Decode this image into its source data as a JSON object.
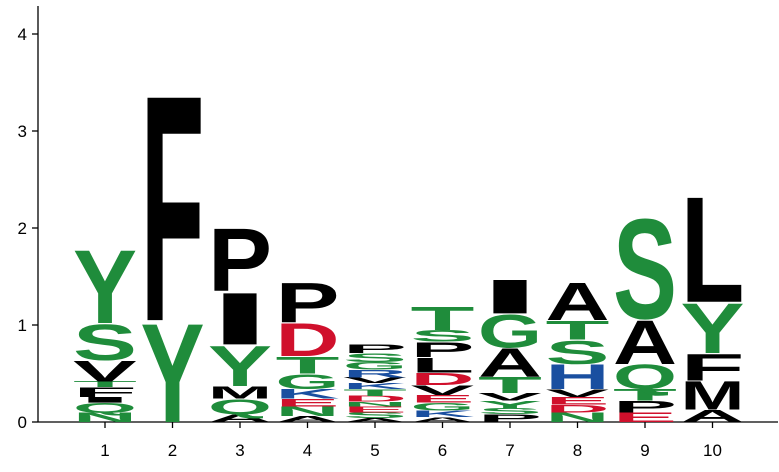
{
  "colors": {
    "hydrophilic": "#1f8c3b",
    "hydrophobic": "#000000",
    "acidic": "#d0102c",
    "basic": "#1a4fa0"
  },
  "chart_data": {
    "type": "sequence-logo",
    "title": "",
    "xlabel": "",
    "ylabel": "",
    "ylim": [
      0,
      4.3
    ],
    "grid": false,
    "yticks": [
      "0",
      "1",
      "2",
      "3",
      "4"
    ],
    "xticks": [
      "1",
      "2",
      "3",
      "4",
      "5",
      "6",
      "7",
      "8",
      "9",
      "10"
    ],
    "positions": [
      {
        "pos": "1",
        "letters": [
          {
            "l": "N",
            "h": 0.1,
            "c": "hydrophilic"
          },
          {
            "l": "Q",
            "h": 0.1,
            "c": "hydrophilic"
          },
          {
            "l": "I",
            "h": 0.06,
            "c": "hydrophobic"
          },
          {
            "l": "F",
            "h": 0.1,
            "c": "hydrophobic"
          },
          {
            "l": "T",
            "h": 0.06,
            "c": "hydrophilic"
          },
          {
            "l": "V",
            "h": 0.22,
            "c": "hydrophobic"
          },
          {
            "l": "S",
            "h": 0.38,
            "c": "hydrophilic"
          },
          {
            "l": "Y",
            "h": 0.78,
            "c": "hydrophilic"
          }
        ]
      },
      {
        "pos": "2",
        "letters": [
          {
            "l": "Y",
            "h": 1.05,
            "c": "hydrophilic"
          },
          {
            "l": "F",
            "h": 2.4,
            "c": "hydrophobic"
          }
        ]
      },
      {
        "pos": "3",
        "letters": [
          {
            "l": "A",
            "h": 0.08,
            "c": "hydrophobic"
          },
          {
            "l": "Q",
            "h": 0.16,
            "c": "hydrophilic"
          },
          {
            "l": "M",
            "h": 0.13,
            "c": "hydrophobic"
          },
          {
            "l": "Y",
            "h": 0.43,
            "c": "hydrophilic"
          },
          {
            "l": "I",
            "h": 0.55,
            "c": "hydrophobic"
          },
          {
            "l": "P",
            "h": 0.67,
            "c": "hydrophobic"
          }
        ]
      },
      {
        "pos": "4",
        "letters": [
          {
            "l": "A",
            "h": 0.06,
            "c": "hydrophobic"
          },
          {
            "l": "N",
            "h": 0.1,
            "c": "hydrophilic"
          },
          {
            "l": "E",
            "h": 0.08,
            "c": "acidic"
          },
          {
            "l": "K",
            "h": 0.1,
            "c": "basic"
          },
          {
            "l": "G",
            "h": 0.16,
            "c": "hydrophilic"
          },
          {
            "l": "T",
            "h": 0.18,
            "c": "hydrophilic"
          },
          {
            "l": "D",
            "h": 0.35,
            "c": "acidic"
          },
          {
            "l": "P",
            "h": 0.42,
            "c": "hydrophobic"
          }
        ]
      },
      {
        "pos": "5",
        "letters": [
          {
            "l": "A",
            "h": 0.04,
            "c": "hydrophobic"
          },
          {
            "l": "S",
            "h": 0.06,
            "c": "hydrophilic"
          },
          {
            "l": "E",
            "h": 0.06,
            "c": "acidic"
          },
          {
            "l": "N",
            "h": 0.05,
            "c": "hydrophilic"
          },
          {
            "l": "D",
            "h": 0.06,
            "c": "acidic"
          },
          {
            "l": "T",
            "h": 0.07,
            "c": "hydrophilic"
          },
          {
            "l": "K",
            "h": 0.06,
            "c": "basic"
          },
          {
            "l": "V",
            "h": 0.06,
            "c": "hydrophobic"
          },
          {
            "l": "R",
            "h": 0.08,
            "c": "basic"
          },
          {
            "l": "G",
            "h": 0.08,
            "c": "hydrophilic"
          },
          {
            "l": "S",
            "h": 0.09,
            "c": "hydrophilic"
          },
          {
            "l": "P",
            "h": 0.09,
            "c": "hydrophobic"
          }
        ]
      },
      {
        "pos": "6",
        "letters": [
          {
            "l": "A",
            "h": 0.05,
            "c": "hydrophobic"
          },
          {
            "l": "K",
            "h": 0.07,
            "c": "basic"
          },
          {
            "l": "G",
            "h": 0.08,
            "c": "hydrophilic"
          },
          {
            "l": "E",
            "h": 0.08,
            "c": "acidic"
          },
          {
            "l": "V",
            "h": 0.1,
            "c": "hydrophobic"
          },
          {
            "l": "D",
            "h": 0.13,
            "c": "acidic"
          },
          {
            "l": "L",
            "h": 0.16,
            "c": "hydrophobic"
          },
          {
            "l": "P",
            "h": 0.16,
            "c": "hydrophobic"
          },
          {
            "l": "S",
            "h": 0.12,
            "c": "hydrophilic"
          },
          {
            "l": "T",
            "h": 0.25,
            "c": "hydrophilic"
          }
        ]
      },
      {
        "pos": "7",
        "letters": [
          {
            "l": "P",
            "h": 0.08,
            "c": "hydrophobic"
          },
          {
            "l": "S",
            "h": 0.06,
            "c": "hydrophilic"
          },
          {
            "l": "Y",
            "h": 0.08,
            "c": "hydrophilic"
          },
          {
            "l": "V",
            "h": 0.08,
            "c": "hydrophobic"
          },
          {
            "l": "T",
            "h": 0.17,
            "c": "hydrophilic"
          },
          {
            "l": "A",
            "h": 0.3,
            "c": "hydrophobic"
          },
          {
            "l": "G",
            "h": 0.35,
            "c": "hydrophilic"
          },
          {
            "l": "I",
            "h": 0.36,
            "c": "hydrophobic"
          }
        ]
      },
      {
        "pos": "8",
        "letters": [
          {
            "l": "N",
            "h": 0.1,
            "c": "hydrophilic"
          },
          {
            "l": "D",
            "h": 0.08,
            "c": "acidic"
          },
          {
            "l": "E",
            "h": 0.08,
            "c": "acidic"
          },
          {
            "l": "V",
            "h": 0.08,
            "c": "hydrophobic"
          },
          {
            "l": "H",
            "h": 0.26,
            "c": "basic"
          },
          {
            "l": "S",
            "h": 0.25,
            "c": "hydrophilic"
          },
          {
            "l": "T",
            "h": 0.2,
            "c": "hydrophilic"
          },
          {
            "l": "A",
            "h": 0.4,
            "c": "hydrophobic"
          }
        ]
      },
      {
        "pos": "9",
        "letters": [
          {
            "l": "E",
            "h": 0.1,
            "c": "acidic"
          },
          {
            "l": "P",
            "h": 0.12,
            "c": "hydrophobic"
          },
          {
            "l": "T",
            "h": 0.12,
            "c": "hydrophilic"
          },
          {
            "l": "Q",
            "h": 0.26,
            "c": "hydrophilic"
          },
          {
            "l": "A",
            "h": 0.47,
            "c": "hydrophobic"
          },
          {
            "l": "S",
            "h": 1.06,
            "c": "hydrophilic"
          }
        ]
      },
      {
        "pos": "10",
        "letters": [
          {
            "l": "A",
            "h": 0.13,
            "c": "hydrophobic"
          },
          {
            "l": "M",
            "h": 0.3,
            "c": "hydrophobic"
          },
          {
            "l": "F",
            "h": 0.28,
            "c": "hydrophobic"
          },
          {
            "l": "Y",
            "h": 0.53,
            "c": "hydrophilic"
          },
          {
            "l": "L",
            "h": 1.12,
            "c": "hydrophobic"
          }
        ]
      }
    ]
  }
}
